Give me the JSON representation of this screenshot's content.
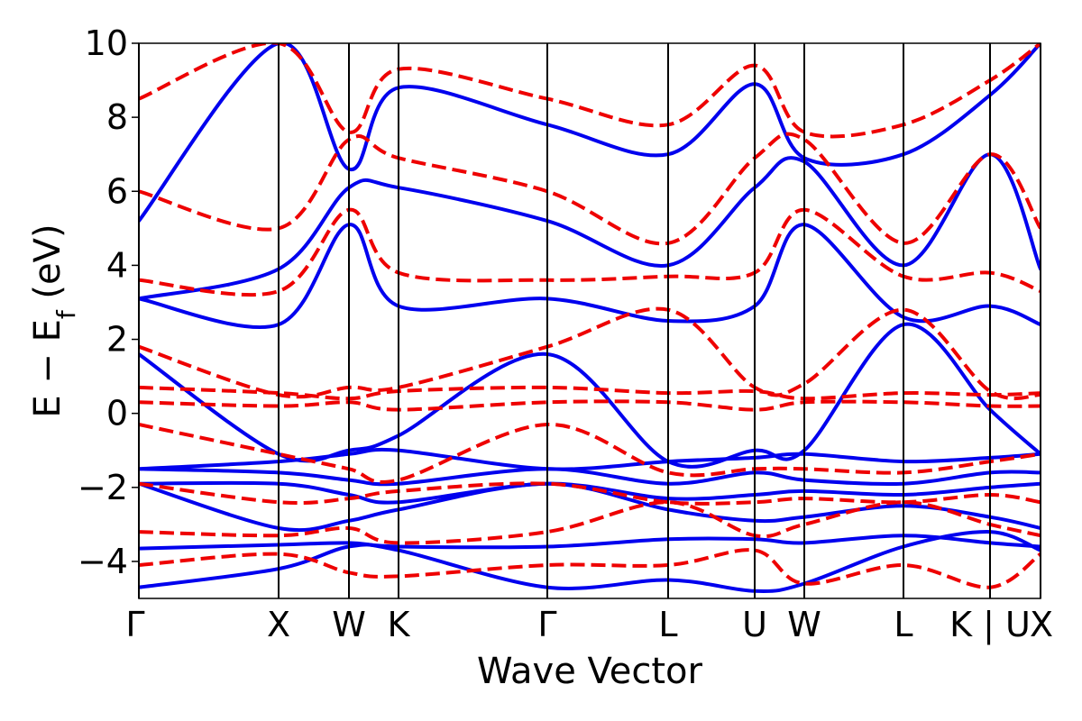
{
  "chart_data": {
    "type": "line",
    "xlabel": "Wave Vector",
    "ylabel_main": "E − E",
    "ylabel_sub": "f",
    "ylabel_unit": " (eV)",
    "ylim": [
      -5,
      10
    ],
    "yticks": [
      {
        "value": -4,
        "label": "−4"
      },
      {
        "value": -2,
        "label": "−2"
      },
      {
        "value": 0,
        "label": "0"
      },
      {
        "value": 2,
        "label": "2"
      },
      {
        "value": 4,
        "label": "4"
      },
      {
        "value": 6,
        "label": "6"
      },
      {
        "value": 8,
        "label": "8"
      },
      {
        "value": 10,
        "label": "10"
      }
    ],
    "xlim": [
      0,
      1
    ],
    "kpoints": [
      {
        "label": "Γ",
        "x": 0.0
      },
      {
        "label": "X",
        "x": 0.155
      },
      {
        "label": "W",
        "x": 0.233
      },
      {
        "label": "K",
        "x": 0.288
      },
      {
        "label": "Γ",
        "x": 0.453
      },
      {
        "label": "L",
        "x": 0.587
      },
      {
        "label": "U",
        "x": 0.683
      },
      {
        "label": "W",
        "x": 0.738
      },
      {
        "label": "L",
        "x": 0.848
      },
      {
        "label": "K | U",
        "x": 0.944
      },
      {
        "label": "X",
        "x": 1.0
      }
    ],
    "grid": false,
    "legend": "none",
    "colors": {
      "series_a": "#0000ee",
      "series_b": "#ee0000"
    },
    "series": [
      {
        "style": "solid",
        "color": "#0000ee",
        "bands": [
          [
            [
              0,
              -4.7
            ],
            [
              0.155,
              -4.2
            ],
            [
              0.233,
              -3.6
            ],
            [
              0.288,
              -3.7
            ],
            [
              0.453,
              -4.7
            ],
            [
              0.587,
              -4.5
            ],
            [
              0.683,
              -4.8
            ],
            [
              0.738,
              -4.6
            ],
            [
              0.848,
              -3.6
            ],
            [
              0.944,
              -3.2
            ],
            [
              1.0,
              -3.7
            ]
          ],
          [
            [
              0,
              -3.65
            ],
            [
              0.155,
              -3.55
            ],
            [
              0.233,
              -3.5
            ],
            [
              0.288,
              -3.6
            ],
            [
              0.453,
              -3.6
            ],
            [
              0.587,
              -3.4
            ],
            [
              0.683,
              -3.4
            ],
            [
              0.738,
              -3.5
            ],
            [
              0.848,
              -3.3
            ],
            [
              0.944,
              -3.5
            ],
            [
              1.0,
              -3.6
            ]
          ],
          [
            [
              0,
              -1.9
            ],
            [
              0.155,
              -3.1
            ],
            [
              0.233,
              -2.9
            ],
            [
              0.288,
              -2.6
            ],
            [
              0.453,
              -1.9
            ],
            [
              0.587,
              -2.6
            ],
            [
              0.683,
              -2.9
            ],
            [
              0.738,
              -2.8
            ],
            [
              0.848,
              -2.5
            ],
            [
              0.944,
              -2.8
            ],
            [
              1.0,
              -3.1
            ]
          ],
          [
            [
              0,
              -1.9
            ],
            [
              0.155,
              -1.9
            ],
            [
              0.233,
              -2.2
            ],
            [
              0.288,
              -2.4
            ],
            [
              0.453,
              -1.9
            ],
            [
              0.587,
              -2.3
            ],
            [
              0.683,
              -2.2
            ],
            [
              0.738,
              -2.1
            ],
            [
              0.848,
              -2.2
            ],
            [
              0.944,
              -2.0
            ],
            [
              1.0,
              -1.9
            ]
          ],
          [
            [
              0,
              -1.5
            ],
            [
              0.155,
              -1.6
            ],
            [
              0.233,
              -1.8
            ],
            [
              0.288,
              -1.9
            ],
            [
              0.453,
              -1.5
            ],
            [
              0.587,
              -1.9
            ],
            [
              0.683,
              -1.6
            ],
            [
              0.738,
              -1.8
            ],
            [
              0.848,
              -1.9
            ],
            [
              0.944,
              -1.6
            ],
            [
              1.0,
              -1.6
            ]
          ],
          [
            [
              0,
              -1.5
            ],
            [
              0.155,
              -1.3
            ],
            [
              0.233,
              -1.1
            ],
            [
              0.288,
              -1.0
            ],
            [
              0.453,
              -1.5
            ],
            [
              0.587,
              -1.3
            ],
            [
              0.683,
              -1.2
            ],
            [
              0.738,
              -1.1
            ],
            [
              0.848,
              -1.3
            ],
            [
              0.944,
              -1.2
            ],
            [
              1.0,
              -1.1
            ]
          ],
          [
            [
              0,
              1.6
            ],
            [
              0.155,
              -1.1
            ],
            [
              0.233,
              -1.0
            ],
            [
              0.288,
              -0.6
            ],
            [
              0.453,
              1.6
            ],
            [
              0.587,
              -1.3
            ],
            [
              0.683,
              -1.0
            ],
            [
              0.738,
              -1.0
            ],
            [
              0.848,
              2.4
            ],
            [
              0.944,
              0.1
            ],
            [
              1.0,
              -1.1
            ]
          ],
          [
            [
              0,
              3.1
            ],
            [
              0.155,
              2.4
            ],
            [
              0.233,
              5.1
            ],
            [
              0.288,
              2.9
            ],
            [
              0.453,
              3.1
            ],
            [
              0.587,
              2.5
            ],
            [
              0.683,
              2.9
            ],
            [
              0.738,
              5.1
            ],
            [
              0.848,
              2.6
            ],
            [
              0.944,
              2.9
            ],
            [
              1.0,
              2.4
            ]
          ],
          [
            [
              0,
              3.1
            ],
            [
              0.155,
              3.9
            ],
            [
              0.233,
              6.1
            ],
            [
              0.288,
              6.1
            ],
            [
              0.453,
              5.2
            ],
            [
              0.587,
              4.0
            ],
            [
              0.683,
              6.1
            ],
            [
              0.738,
              6.8
            ],
            [
              0.848,
              4.0
            ],
            [
              0.944,
              7.0
            ],
            [
              1.0,
              3.9
            ]
          ],
          [
            [
              0,
              5.2
            ],
            [
              0.155,
              10.0
            ],
            [
              0.233,
              6.6
            ],
            [
              0.288,
              8.8
            ],
            [
              0.453,
              7.8
            ],
            [
              0.587,
              7.0
            ],
            [
              0.683,
              8.9
            ],
            [
              0.738,
              6.9
            ],
            [
              0.848,
              7.0
            ],
            [
              0.944,
              8.6
            ],
            [
              1.0,
              10.0
            ]
          ]
        ]
      },
      {
        "style": "dashed",
        "color": "#ee0000",
        "bands": [
          [
            [
              0,
              -4.1
            ],
            [
              0.155,
              -3.8
            ],
            [
              0.233,
              -4.3
            ],
            [
              0.288,
              -4.4
            ],
            [
              0.453,
              -4.1
            ],
            [
              0.587,
              -4.1
            ],
            [
              0.683,
              -3.7
            ],
            [
              0.738,
              -4.6
            ],
            [
              0.848,
              -4.1
            ],
            [
              0.944,
              -4.7
            ],
            [
              1.0,
              -3.8
            ]
          ],
          [
            [
              0,
              -3.2
            ],
            [
              0.155,
              -3.3
            ],
            [
              0.233,
              -3.1
            ],
            [
              0.288,
              -3.5
            ],
            [
              0.453,
              -3.2
            ],
            [
              0.587,
              -2.4
            ],
            [
              0.683,
              -3.3
            ],
            [
              0.738,
              -3.0
            ],
            [
              0.848,
              -2.4
            ],
            [
              0.944,
              -3.0
            ],
            [
              1.0,
              -3.3
            ]
          ],
          [
            [
              0,
              -1.9
            ],
            [
              0.155,
              -2.4
            ],
            [
              0.233,
              -2.3
            ],
            [
              0.288,
              -2.1
            ],
            [
              0.453,
              -1.9
            ],
            [
              0.587,
              -2.4
            ],
            [
              0.683,
              -2.4
            ],
            [
              0.738,
              -2.3
            ],
            [
              0.848,
              -2.4
            ],
            [
              0.944,
              -2.2
            ],
            [
              1.0,
              -2.4
            ]
          ],
          [
            [
              0,
              -0.3
            ],
            [
              0.155,
              -1.1
            ],
            [
              0.233,
              -1.5
            ],
            [
              0.288,
              -1.8
            ],
            [
              0.453,
              -0.3
            ],
            [
              0.587,
              -1.6
            ],
            [
              0.683,
              -1.5
            ],
            [
              0.738,
              -1.5
            ],
            [
              0.848,
              -1.6
            ],
            [
              0.944,
              -1.3
            ],
            [
              1.0,
              -1.1
            ]
          ],
          [
            [
              0,
              0.3
            ],
            [
              0.155,
              0.2
            ],
            [
              0.233,
              0.3
            ],
            [
              0.288,
              0.1
            ],
            [
              0.453,
              0.3
            ],
            [
              0.587,
              0.3
            ],
            [
              0.683,
              0.1
            ],
            [
              0.738,
              0.3
            ],
            [
              0.848,
              0.3
            ],
            [
              0.944,
              0.2
            ],
            [
              1.0,
              0.2
            ]
          ],
          [
            [
              0,
              0.7
            ],
            [
              0.155,
              0.55
            ],
            [
              0.233,
              0.4
            ],
            [
              0.288,
              0.6
            ],
            [
              0.453,
              0.7
            ],
            [
              0.587,
              0.55
            ],
            [
              0.683,
              0.6
            ],
            [
              0.738,
              0.4
            ],
            [
              0.848,
              0.55
            ],
            [
              0.944,
              0.5
            ],
            [
              1.0,
              0.55
            ]
          ],
          [
            [
              0,
              1.8
            ],
            [
              0.155,
              0.5
            ],
            [
              0.233,
              0.7
            ],
            [
              0.288,
              0.7
            ],
            [
              0.453,
              1.8
            ],
            [
              0.587,
              2.8
            ],
            [
              0.683,
              0.7
            ],
            [
              0.738,
              0.8
            ],
            [
              0.848,
              2.8
            ],
            [
              0.944,
              0.6
            ],
            [
              1.0,
              0.5
            ]
          ],
          [
            [
              0,
              3.6
            ],
            [
              0.155,
              3.3
            ],
            [
              0.233,
              5.5
            ],
            [
              0.288,
              3.8
            ],
            [
              0.453,
              3.6
            ],
            [
              0.587,
              3.7
            ],
            [
              0.683,
              3.8
            ],
            [
              0.738,
              5.5
            ],
            [
              0.848,
              3.7
            ],
            [
              0.944,
              3.8
            ],
            [
              1.0,
              3.3
            ]
          ],
          [
            [
              0,
              6.0
            ],
            [
              0.155,
              5.0
            ],
            [
              0.233,
              7.4
            ],
            [
              0.288,
              6.9
            ],
            [
              0.453,
              6.0
            ],
            [
              0.587,
              4.6
            ],
            [
              0.683,
              6.9
            ],
            [
              0.738,
              7.4
            ],
            [
              0.848,
              4.6
            ],
            [
              0.944,
              7.0
            ],
            [
              1.0,
              5.0
            ]
          ],
          [
            [
              0,
              8.5
            ],
            [
              0.155,
              10.0
            ],
            [
              0.233,
              7.6
            ],
            [
              0.288,
              9.3
            ],
            [
              0.453,
              8.5
            ],
            [
              0.587,
              7.8
            ],
            [
              0.683,
              9.4
            ],
            [
              0.738,
              7.6
            ],
            [
              0.848,
              7.8
            ],
            [
              0.944,
              9.0
            ],
            [
              1.0,
              10.0
            ]
          ]
        ]
      }
    ]
  }
}
